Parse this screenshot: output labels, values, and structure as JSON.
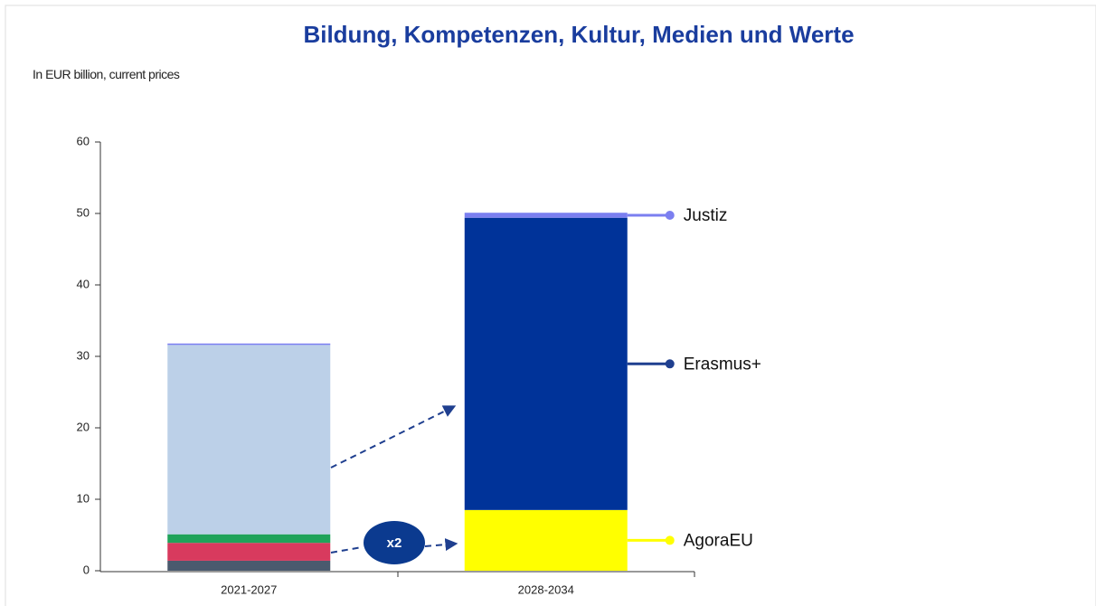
{
  "chart_data": {
    "type": "stacked_bar",
    "title": "Bildung, Kompetenzen, Kultur, Medien und Werte",
    "y_label": "In EUR billion, current prices",
    "categories": [
      "2021-2027",
      "2028-2034"
    ],
    "series": [
      {
        "color": "#4a5a6e",
        "values": [
          1.4,
          null
        ]
      },
      {
        "color": "#d83a5e",
        "values": [
          2.5,
          null
        ]
      },
      {
        "color": "#1fa35a",
        "values": [
          1.2,
          null
        ]
      },
      {
        "name": "AgoraEU",
        "color": "#ffff00",
        "values": [
          null,
          8.5
        ]
      },
      {
        "name": "Erasmus+",
        "color": "#003399",
        "colors": [
          "#bcd0e8",
          "#003399"
        ],
        "values": [
          26.5,
          40.9
        ]
      },
      {
        "name": "Justiz",
        "color": "#7b7ff0",
        "values": [
          0.2,
          0.7
        ]
      }
    ],
    "annotation": "x2",
    "ylim": [
      0,
      60
    ],
    "yticks": [
      0,
      10,
      20,
      30,
      40,
      50,
      60
    ],
    "grid": false
  }
}
